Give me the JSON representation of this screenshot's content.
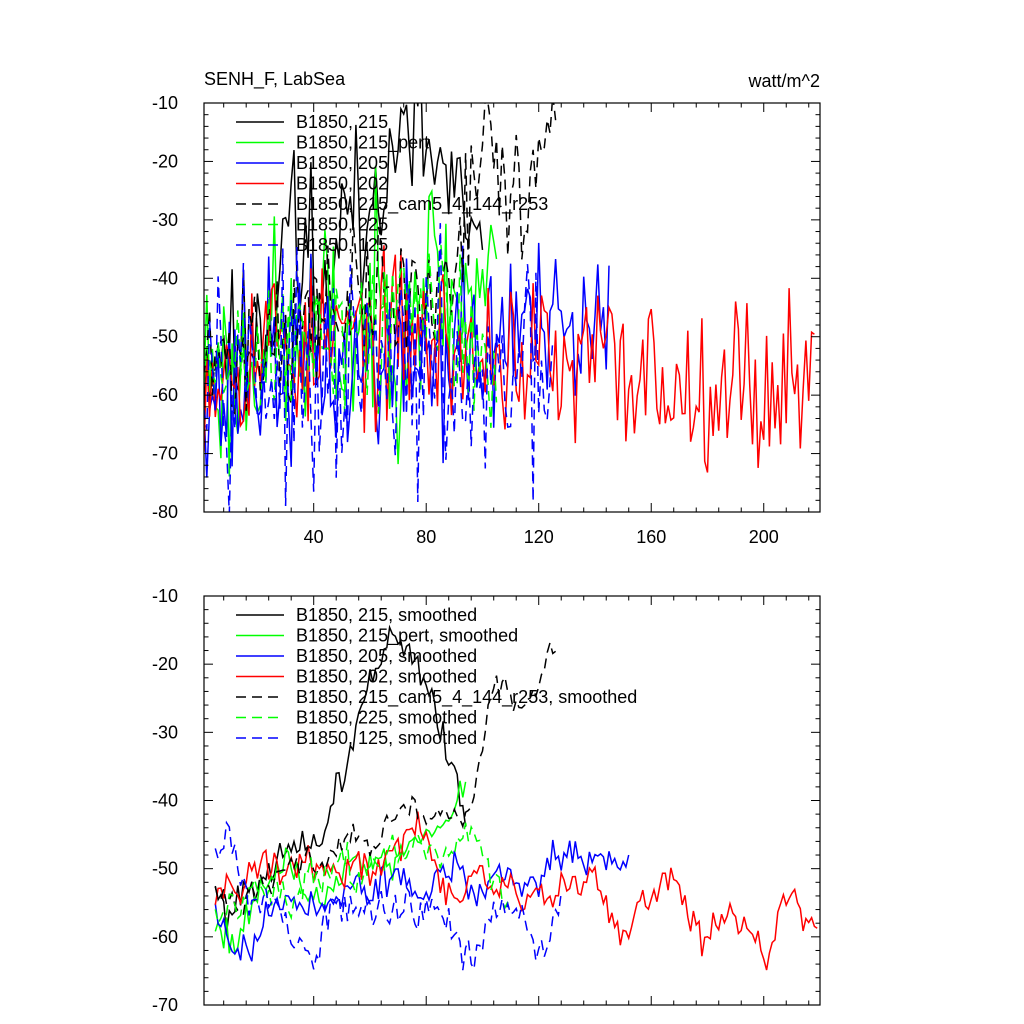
{
  "figure": {
    "title": "SENH_F, LabSea",
    "units": "watt/m^2"
  },
  "chart_data": [
    {
      "type": "line",
      "title": "SENH_F, LabSea",
      "units": "watt/m^2",
      "xlabel": "",
      "ylabel": "",
      "xlim": [
        1,
        220
      ],
      "ylim": [
        -80,
        -10
      ],
      "xticks": [
        40,
        80,
        120,
        160,
        200
      ],
      "xtick_labels": [
        "40",
        "80",
        "120",
        "160",
        "200"
      ],
      "yticks": [
        -10,
        -20,
        -30,
        -40,
        -50,
        -60,
        -70,
        -80
      ],
      "ytick_labels": [
        "-10",
        "-20",
        "-30",
        "-40",
        "-50",
        "-60",
        "-70",
        "-80"
      ],
      "grid": false,
      "legend_position": "top-left",
      "series": [
        {
          "name": "B1850, 215",
          "color": "#000000",
          "dash": "solid",
          "start": 1,
          "length": 100,
          "anchors": [
            -55,
            -52,
            -50,
            -54,
            -50,
            -45,
            -48,
            -40,
            -25,
            -42,
            -30,
            -48,
            -38,
            -30,
            -25,
            -40,
            -15,
            -25,
            -14,
            -20,
            -13,
            -20,
            -22,
            -25,
            -30,
            -35,
            -40
          ],
          "amp": 7,
          "seed": 11
        },
        {
          "name": "B1850, 215_pert",
          "color": "#00ff00",
          "dash": "solid",
          "start": 1,
          "length": 105,
          "anchors": [
            -52,
            -56,
            -60,
            -54,
            -50,
            -48,
            -55,
            -50,
            -45,
            -52,
            -50,
            -48,
            -45,
            -50,
            -44,
            -40,
            -38,
            -45,
            -42,
            -40,
            -42
          ],
          "amp": 9,
          "seed": 23
        },
        {
          "name": "B1850, 205",
          "color": "#0000ff",
          "dash": "solid",
          "start": 1,
          "length": 145,
          "anchors": [
            -55,
            -60,
            -62,
            -58,
            -55,
            -54,
            -56,
            -55,
            -53,
            -55,
            -57,
            -56,
            -54,
            -55,
            -55,
            -53,
            -52,
            -55,
            -50,
            -52,
            -55,
            -50,
            -48,
            -47,
            -50,
            -52,
            -50,
            -52,
            -50,
            -50
          ],
          "amp": 8,
          "seed": 37
        },
        {
          "name": "B1850, 202",
          "color": "#ff0000",
          "dash": "solid",
          "start": 1,
          "length": 218,
          "anchors": [
            -55,
            -54,
            -53,
            -52,
            -50,
            -50,
            -54,
            -52,
            -51,
            -49,
            -50,
            -52,
            -48,
            -50,
            -52,
            -50,
            -55,
            -53,
            -52,
            -53,
            -55,
            -52,
            -60,
            -55,
            -52,
            -56,
            -57,
            -55,
            -58,
            -60,
            -57,
            -56,
            -58,
            -56,
            -62,
            -55,
            -57,
            -58
          ],
          "amp": 7,
          "seed": 53
        },
        {
          "name": "B1850, 215_cam5_4_144_r253",
          "color": "#000000",
          "dash": "dashed",
          "start": 1,
          "length": 126,
          "anchors": [
            -55,
            -54,
            -55,
            -50,
            -50,
            -48,
            -50,
            -47,
            -45,
            -48,
            -43,
            -45,
            -40,
            -45,
            -42,
            -44,
            -43,
            -35,
            -25,
            -18,
            -20,
            -27,
            -25,
            -20,
            -12
          ],
          "amp": 6,
          "seed": 71
        },
        {
          "name": "B1850, 225",
          "color": "#00ff00",
          "dash": "dashed",
          "start": 1,
          "length": 105,
          "anchors": [
            -56,
            -58,
            -55,
            -52,
            -54,
            -55,
            -52,
            -50,
            -48,
            -50,
            -47,
            -52,
            -48,
            -47,
            -45,
            -48,
            -44,
            -46,
            -50,
            -52,
            -55
          ],
          "amp": 7,
          "seed": 89
        },
        {
          "name": "B1850, 125",
          "color": "#0000ff",
          "dash": "dashed",
          "start": 1,
          "length": 125,
          "anchors": [
            -46,
            -50,
            -55,
            -52,
            -55,
            -58,
            -56,
            -60,
            -62,
            -60,
            -58,
            -55,
            -55,
            -58,
            -56,
            -57,
            -55,
            -56,
            -58,
            -60,
            -62,
            -60,
            -55,
            -58,
            -60,
            -56
          ],
          "amp": 9,
          "seed": 97
        }
      ]
    },
    {
      "type": "line",
      "title": "",
      "xlabel": "",
      "ylabel": "",
      "xlim": [
        1,
        220
      ],
      "ylim": [
        -70,
        -10
      ],
      "xticks": [
        40,
        80,
        120,
        160,
        200
      ],
      "xtick_labels": [],
      "yticks": [
        -10,
        -20,
        -30,
        -40,
        -50,
        -60,
        -70
      ],
      "ytick_labels": [
        "-10",
        "-20",
        "-30",
        "-40",
        "-50",
        "-60",
        "-70"
      ],
      "grid": false,
      "legend_position": "top-left",
      "series": [
        {
          "name": "B1850, 215, smoothed",
          "color": "#000000",
          "dash": "solid",
          "start": 5,
          "length": 90,
          "anchors": [
            -53,
            -57,
            -54,
            -52,
            -51,
            -50,
            -48,
            -47,
            -46,
            -46,
            -39,
            -35,
            -28,
            -22,
            -19,
            -16,
            -17,
            -20,
            -24,
            -30,
            -36,
            -42
          ],
          "amp": 1.2,
          "seed": 101
        },
        {
          "name": "B1850, 215_pert, smoothed",
          "color": "#00ff00",
          "dash": "solid",
          "start": 5,
          "length": 90,
          "anchors": [
            -58,
            -59,
            -61,
            -56,
            -53,
            -50,
            -49,
            -52,
            -53,
            -55,
            -52,
            -50,
            -49,
            -48,
            -49,
            -50,
            -47,
            -46,
            -45,
            -43,
            -41,
            -38
          ],
          "amp": 1.2,
          "seed": 113
        },
        {
          "name": "B1850, 205, smoothed",
          "color": "#0000ff",
          "dash": "solid",
          "start": 5,
          "length": 148,
          "anchors": [
            -56,
            -60,
            -62,
            -61,
            -57,
            -55,
            -54,
            -55,
            -56,
            -55,
            -53,
            -52,
            -55,
            -52,
            -51,
            -52,
            -55,
            -51,
            -50,
            -51,
            -55,
            -53,
            -50,
            -51,
            -53,
            -52,
            -48,
            -47,
            -48,
            -50,
            -47,
            -49,
            -51
          ],
          "amp": 1.2,
          "seed": 127
        },
        {
          "name": "B1850, 202, smoothed",
          "color": "#ff0000",
          "dash": "solid",
          "start": 5,
          "length": 215,
          "anchors": [
            -54,
            -52,
            -53,
            -50,
            -49,
            -50,
            -51,
            -48,
            -50,
            -50,
            -52,
            -48,
            -50,
            -50,
            -47,
            -45,
            -43,
            -48,
            -53,
            -55,
            -52,
            -51,
            -54,
            -52,
            -56,
            -53,
            -55,
            -52,
            -53,
            -51,
            -53,
            -57,
            -60,
            -55,
            -55,
            -52,
            -51,
            -57,
            -60,
            -59,
            -56,
            -57,
            -60,
            -64,
            -57,
            -54,
            -58,
            -59
          ],
          "amp": 1.2,
          "seed": 131
        },
        {
          "name": "B1850, 215_cam5_4_144_r253, smoothed",
          "color": "#000000",
          "dash": "dashed",
          "start": 5,
          "length": 122,
          "anchors": [
            -54,
            -55,
            -56,
            -52,
            -53,
            -50,
            -50,
            -48,
            -50,
            -47,
            -46,
            -45,
            -48,
            -44,
            -42,
            -40,
            -43,
            -41,
            -42,
            -43,
            -38,
            -24,
            -22,
            -27,
            -25,
            -21,
            -18
          ],
          "amp": 1.0,
          "seed": 139
        },
        {
          "name": "B1850, 225, smoothed",
          "color": "#00ff00",
          "dash": "dashed",
          "start": 5,
          "length": 105,
          "anchors": [
            -57,
            -55,
            -56,
            -52,
            -54,
            -53,
            -55,
            -52,
            -50,
            -51,
            -48,
            -52,
            -49,
            -50,
            -47,
            -48,
            -46,
            -47,
            -48,
            -46,
            -44,
            -47,
            -52,
            -55
          ],
          "amp": 1.2,
          "seed": 149
        },
        {
          "name": "B1850, 125, smoothed",
          "color": "#0000ff",
          "dash": "dashed",
          "start": 5,
          "length": 124,
          "anchors": [
            -46,
            -45,
            -50,
            -55,
            -53,
            -56,
            -60,
            -62,
            -64,
            -58,
            -55,
            -55,
            -57,
            -56,
            -56,
            -55,
            -57,
            -56,
            -55,
            -58,
            -61,
            -63,
            -60,
            -56,
            -55,
            -56,
            -62,
            -60,
            -55
          ],
          "amp": 1.4,
          "seed": 157
        }
      ]
    }
  ]
}
